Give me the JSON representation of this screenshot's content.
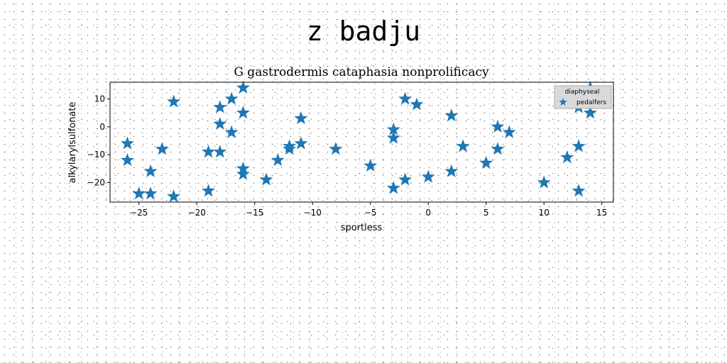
{
  "suptitle": "z badju",
  "chart_data": {
    "type": "scatter",
    "title": "G gastrodermis cataphasia nonprolificacy",
    "xlabel": "sportless",
    "ylabel": "alkylarylsulfonate",
    "xlim": [
      -27.5,
      16
    ],
    "ylim": [
      -27,
      16
    ],
    "xticks": [
      -25,
      -20,
      -15,
      -10,
      -5,
      0,
      5,
      10,
      15
    ],
    "yticks": [
      -20,
      -10,
      0,
      10
    ],
    "xtick_labels": [
      "−25",
      "−20",
      "−15",
      "−10",
      "−5",
      "0",
      "5",
      "10",
      "15"
    ],
    "ytick_labels": [
      "−20",
      "−10",
      "0",
      "10"
    ],
    "grid": false,
    "marker": "star",
    "legend": {
      "title": "diaphyseal",
      "placement": "top-right"
    },
    "series": [
      {
        "name": "pedalfers",
        "color": "#1f77b4",
        "points": [
          [
            -26,
            -6
          ],
          [
            -26,
            -12
          ],
          [
            -25,
            -24
          ],
          [
            -24,
            -16
          ],
          [
            -24,
            -24
          ],
          [
            -23,
            -8
          ],
          [
            -22,
            9
          ],
          [
            -22,
            -25
          ],
          [
            -19,
            -9
          ],
          [
            -19,
            -23
          ],
          [
            -18,
            7
          ],
          [
            -18,
            1
          ],
          [
            -18,
            -9
          ],
          [
            -17,
            10
          ],
          [
            -17,
            -2
          ],
          [
            -16,
            14
          ],
          [
            -16,
            5
          ],
          [
            -16,
            -15
          ],
          [
            -16,
            -17
          ],
          [
            -14,
            -19
          ],
          [
            -13,
            -12
          ],
          [
            -12,
            -7
          ],
          [
            -12,
            -8
          ],
          [
            -11,
            3
          ],
          [
            -11,
            -6
          ],
          [
            -8,
            -8
          ],
          [
            -5,
            -14
          ],
          [
            -3,
            -1
          ],
          [
            -3,
            -4
          ],
          [
            -3,
            -22
          ],
          [
            -2,
            10
          ],
          [
            -2,
            -19
          ],
          [
            -1,
            8
          ],
          [
            0,
            -18
          ],
          [
            2,
            4
          ],
          [
            2,
            -16
          ],
          [
            3,
            -7
          ],
          [
            5,
            -13
          ],
          [
            6,
            0
          ],
          [
            6,
            -8
          ],
          [
            7,
            -2
          ],
          [
            10,
            -20
          ],
          [
            12,
            -11
          ],
          [
            13,
            7
          ],
          [
            13,
            -7
          ],
          [
            13,
            -23
          ],
          [
            14,
            14
          ],
          [
            14,
            5
          ]
        ]
      }
    ]
  }
}
